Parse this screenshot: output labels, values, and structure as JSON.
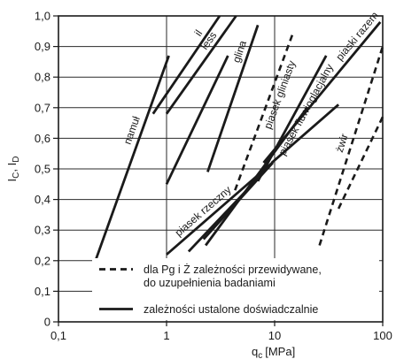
{
  "chart_data": {
    "type": "line",
    "xscale": "log",
    "xlim": [
      0.1,
      100
    ],
    "ylim": [
      0,
      1.0
    ],
    "xlabel": {
      "main": "q",
      "sub": "c",
      "unit": "[MPa]"
    },
    "ylabel": {
      "a": "I",
      "a_sub": "C",
      "sep": ", ",
      "b": "I",
      "b_sub": "D"
    },
    "x_ticks": [
      {
        "value": 0.1,
        "label": "0,1"
      },
      {
        "value": 1,
        "label": "1"
      },
      {
        "value": 10,
        "label": "10"
      },
      {
        "value": 100,
        "label": "100"
      }
    ],
    "y_ticks": [
      {
        "value": 0,
        "label": "0"
      },
      {
        "value": 0.1,
        "label": "0,1"
      },
      {
        "value": 0.2,
        "label": "0,2"
      },
      {
        "value": 0.3,
        "label": "0,3"
      },
      {
        "value": 0.4,
        "label": "0,4"
      },
      {
        "value": 0.5,
        "label": "0,5"
      },
      {
        "value": 0.6,
        "label": "0,6"
      },
      {
        "value": 0.7,
        "label": "0,7"
      },
      {
        "value": 0.8,
        "label": "0,8"
      },
      {
        "value": 0.9,
        "label": "0,9"
      },
      {
        "value": 1.0,
        "label": "1,0"
      }
    ],
    "grid": true,
    "series": [
      {
        "name": "namuł",
        "style": "solid",
        "points": [
          [
            0.22,
            0.2
          ],
          [
            1.05,
            0.87
          ]
        ]
      },
      {
        "name": "il",
        "style": "solid",
        "points": [
          [
            0.75,
            0.68
          ],
          [
            3.1,
            1.0
          ]
        ]
      },
      {
        "name": "less",
        "style": "solid",
        "points": [
          [
            1.0,
            0.68
          ],
          [
            4.4,
            1.0
          ]
        ]
      },
      {
        "name": "",
        "style": "solid",
        "points": [
          [
            1.0,
            0.45
          ],
          [
            3.7,
            0.87
          ]
        ]
      },
      {
        "name": "glina",
        "style": "solid",
        "points": [
          [
            2.4,
            0.49
          ],
          [
            7.0,
            0.97
          ]
        ]
      },
      {
        "name": "piasek gliniasty",
        "style": "dashed",
        "points": [
          [
            4.3,
            0.43
          ],
          [
            15.0,
            0.95
          ]
        ]
      },
      {
        "name": "piasek fluwioglacjalny",
        "style": "solid",
        "points": [
          [
            7.0,
            0.46
          ],
          [
            30.0,
            0.87
          ]
        ]
      },
      {
        "name": "piaski razem",
        "style": "solid",
        "points": [
          [
            7.9,
            0.52
          ],
          [
            95.0,
            0.98
          ]
        ]
      },
      {
        "name": "żwir",
        "style": "dashed",
        "points": [
          [
            26.0,
            0.25
          ],
          [
            100.0,
            0.9
          ]
        ]
      },
      {
        "name": "",
        "style": "dashed",
        "points": [
          [
            39.0,
            0.37
          ],
          [
            100.0,
            0.67
          ]
        ]
      },
      {
        "name": "piasek rzeczny",
        "style": "solid",
        "points": [
          [
            1.0,
            0.22
          ],
          [
            9.5,
            0.52
          ]
        ]
      },
      {
        "name": "",
        "style": "solid",
        "points": [
          [
            1.6,
            0.23
          ],
          [
            9.6,
            0.52
          ]
        ]
      },
      {
        "name": "",
        "style": "solid",
        "points": [
          [
            2.2,
            0.27
          ],
          [
            9.6,
            0.52
          ]
        ]
      },
      {
        "name": "",
        "style": "solid",
        "points": [
          [
            2.3,
            0.25
          ],
          [
            20.0,
            0.7
          ]
        ]
      },
      {
        "name": "",
        "style": "solid",
        "points": [
          [
            9.4,
            0.52
          ],
          [
            39.0,
            0.71
          ]
        ]
      }
    ],
    "legend": [
      {
        "style": "dashed",
        "text_lines": [
          "dla Pg i Ż zależności przewidywane,",
          "do uzupełnienia badaniami"
        ]
      },
      {
        "style": "solid",
        "text_lines": [
          "zależności ustalone doświadczalnie"
        ]
      }
    ],
    "legend_position": "bottom-right"
  }
}
